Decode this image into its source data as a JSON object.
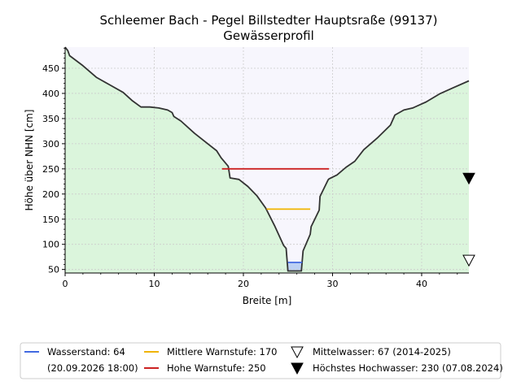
{
  "chart_data": {
    "type": "area",
    "title": "Schleemer Bach - Pegel Billstedter Hauptsraße (99137)",
    "subtitle": "Gewässerprofil",
    "xlabel": "Breite [m]",
    "ylabel": "Höhe über NHN [cm]",
    "xlim": [
      0,
      45.3
    ],
    "ylim": [
      43,
      492
    ],
    "xticks": [
      0,
      10,
      20,
      30,
      40
    ],
    "yticks": [
      50,
      100,
      150,
      200,
      250,
      300,
      350,
      400,
      450
    ],
    "grid": true,
    "profile": {
      "x": [
        0,
        0.3,
        0.5,
        2,
        3.5,
        5,
        6.5,
        7.5,
        8.5,
        9.5,
        10.5,
        11.5,
        12,
        12.2,
        13,
        14.5,
        16,
        17,
        17.5,
        18.3,
        18.5,
        19.5,
        20.5,
        21.5,
        22.5,
        23.5,
        24.5,
        24.8,
        25,
        26.5,
        26.7,
        27.5,
        27.6,
        28.5,
        28.6,
        29.5,
        29.6,
        30.5,
        31.5,
        32.5,
        33.5,
        35,
        36.5,
        37,
        38,
        39,
        40.5,
        42,
        43.5,
        45.3
      ],
      "y": [
        492,
        485,
        475,
        455,
        432,
        417,
        402,
        386,
        373,
        373,
        371,
        367,
        362,
        354,
        345,
        321,
        300,
        286,
        272,
        255,
        232,
        229,
        215,
        197,
        172,
        137,
        98,
        92,
        47,
        47,
        87,
        120,
        135,
        168,
        195,
        228,
        230,
        238,
        253,
        265,
        288,
        311,
        337,
        357,
        367,
        371,
        383,
        399,
        411,
        425
      ]
    },
    "series": [
      {
        "name": "Wasserstand: 64",
        "y": 64,
        "x_range": [
          25,
          26.6
        ],
        "color": "#4169e1"
      },
      {
        "name": "Mittlere Warnstufe: 170",
        "y": 170,
        "x_range": [
          22.6,
          27.5
        ],
        "color": "#f0b400"
      },
      {
        "name": "Hohe Warnstufe: 250",
        "y": 250,
        "x_range": [
          17.6,
          29.6
        ],
        "color": "#cc2222"
      }
    ],
    "markers": [
      {
        "name": "Mittelwasser: 67 (2014-2025)",
        "y": 67,
        "x": 45.3,
        "filled": false
      },
      {
        "name": "Höchstes Hochwasser: 230 (07.08.2024)",
        "y": 230,
        "x": 45.3,
        "filled": true
      }
    ],
    "colors": {
      "ground": "#dbf5dc",
      "air": "#f7f6fd",
      "water": "#bdd1f3",
      "profile_line": "#333333"
    },
    "legend": {
      "placement": "bottom",
      "water_level_label": "Wasserstand: 64",
      "water_level_time": "(20.09.2026 18:00)",
      "mid_warn_label": "Mittlere Warnstufe: 170",
      "high_warn_label": "Hohe Warnstufe: 250",
      "mean_water_label": "Mittelwasser: 67 (2014-2025)",
      "max_flood_label": "Höchstes Hochwasser: 230 (07.08.2024)"
    }
  }
}
